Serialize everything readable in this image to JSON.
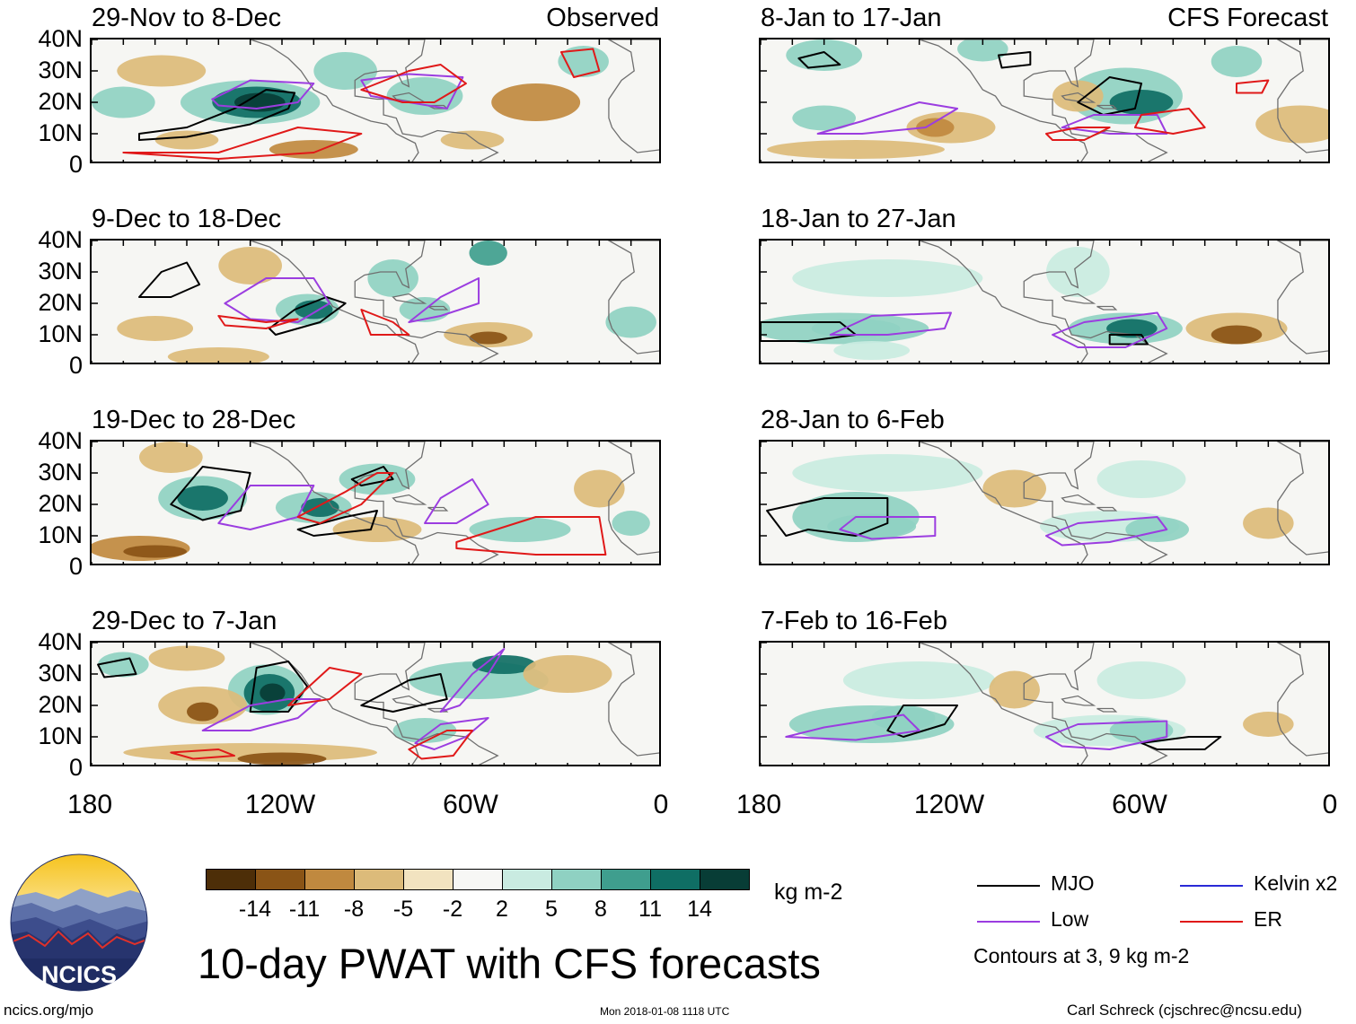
{
  "chart_data": {
    "type": "heatmap",
    "title": "10-day PWAT with CFS forecasts",
    "variable": "PWAT anomaly",
    "units": "kg m-2",
    "region_label": "ncics.org/mjo",
    "latitude_ticks": [
      "40N",
      "30N",
      "20N",
      "10N",
      "0"
    ],
    "longitude_ticks": [
      "180",
      "120W",
      "60W",
      "0"
    ],
    "lat_range": [
      0,
      40
    ],
    "lon_range": [
      -180,
      0
    ],
    "colorbar": {
      "levels": [
        "-14",
        "-11",
        "-8",
        "-5",
        "-2",
        "2",
        "5",
        "8",
        "11",
        "14"
      ],
      "colors": [
        "#4d2e08",
        "#8a5416",
        "#c0893f",
        "#dcbb7a",
        "#f2e3c0",
        "#f7f7f5",
        "#c9ebe1",
        "#8fd1c2",
        "#3f9e8e",
        "#0f6e64",
        "#083d36"
      ],
      "units_label": "kg m-2"
    },
    "panels": [
      {
        "id": "p1",
        "title": "29-Nov to 8-Dec",
        "tag": "Observed"
      },
      {
        "id": "p2",
        "title": "9-Dec to 18-Dec",
        "tag": ""
      },
      {
        "id": "p3",
        "title": "19-Dec to 28-Dec",
        "tag": ""
      },
      {
        "id": "p4",
        "title": "29-Dec to 7-Jan",
        "tag": ""
      },
      {
        "id": "p5",
        "title": "8-Jan to 17-Jan",
        "tag": "CFS Forecast"
      },
      {
        "id": "p6",
        "title": "18-Jan to 27-Jan",
        "tag": ""
      },
      {
        "id": "p7",
        "title": "28-Jan to 6-Feb",
        "tag": ""
      },
      {
        "id": "p8",
        "title": "7-Feb to 16-Feb",
        "tag": ""
      }
    ],
    "legend": [
      {
        "label": "MJO",
        "color": "#000000"
      },
      {
        "label": "Kelvin x2",
        "color": "#2a2ad6"
      },
      {
        "label": "Low",
        "color": "#9b3de0"
      },
      {
        "label": "ER",
        "color": "#e01919"
      }
    ],
    "contour_note": "Contours at 3, 9 kg m-2"
  },
  "footer": {
    "logo_text": "NCICS",
    "site": "ncics.org/mjo",
    "timestamp": "Mon 2018-01-08 1118 UTC",
    "author": "Carl Schreck (cjschrec@ncsu.edu)"
  }
}
